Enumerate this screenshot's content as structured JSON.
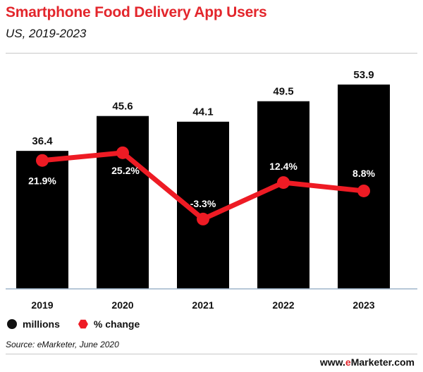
{
  "header": {
    "title": "Smartphone Food Delivery App Users",
    "subtitle": "US, 2019-2023"
  },
  "chart_data": {
    "type": "bar",
    "categories": [
      "2019",
      "2020",
      "2021",
      "2022",
      "2023"
    ],
    "series": [
      {
        "name": "millions",
        "type": "bar",
        "values": [
          36.4,
          45.6,
          44.1,
          49.5,
          53.9
        ],
        "labels": [
          "36.4",
          "45.6",
          "44.1",
          "49.5",
          "53.9"
        ],
        "color": "#000000"
      },
      {
        "name": "% change",
        "type": "line",
        "values": [
          21.9,
          25.2,
          -3.3,
          12.4,
          8.8
        ],
        "labels": [
          "21.9%",
          "25.2%",
          "-3.3%",
          "12.4%",
          "8.8%"
        ],
        "color": "#ee1b24"
      }
    ],
    "legend_position": "bottom-left",
    "grid": false
  },
  "legend": {
    "millions": "millions",
    "pct_change": "% change"
  },
  "footer": {
    "source": "Source: eMarketer, June 2020",
    "brand_prefix": "www.",
    "brand_e": "e",
    "brand_suffix": "Marketer.com"
  }
}
